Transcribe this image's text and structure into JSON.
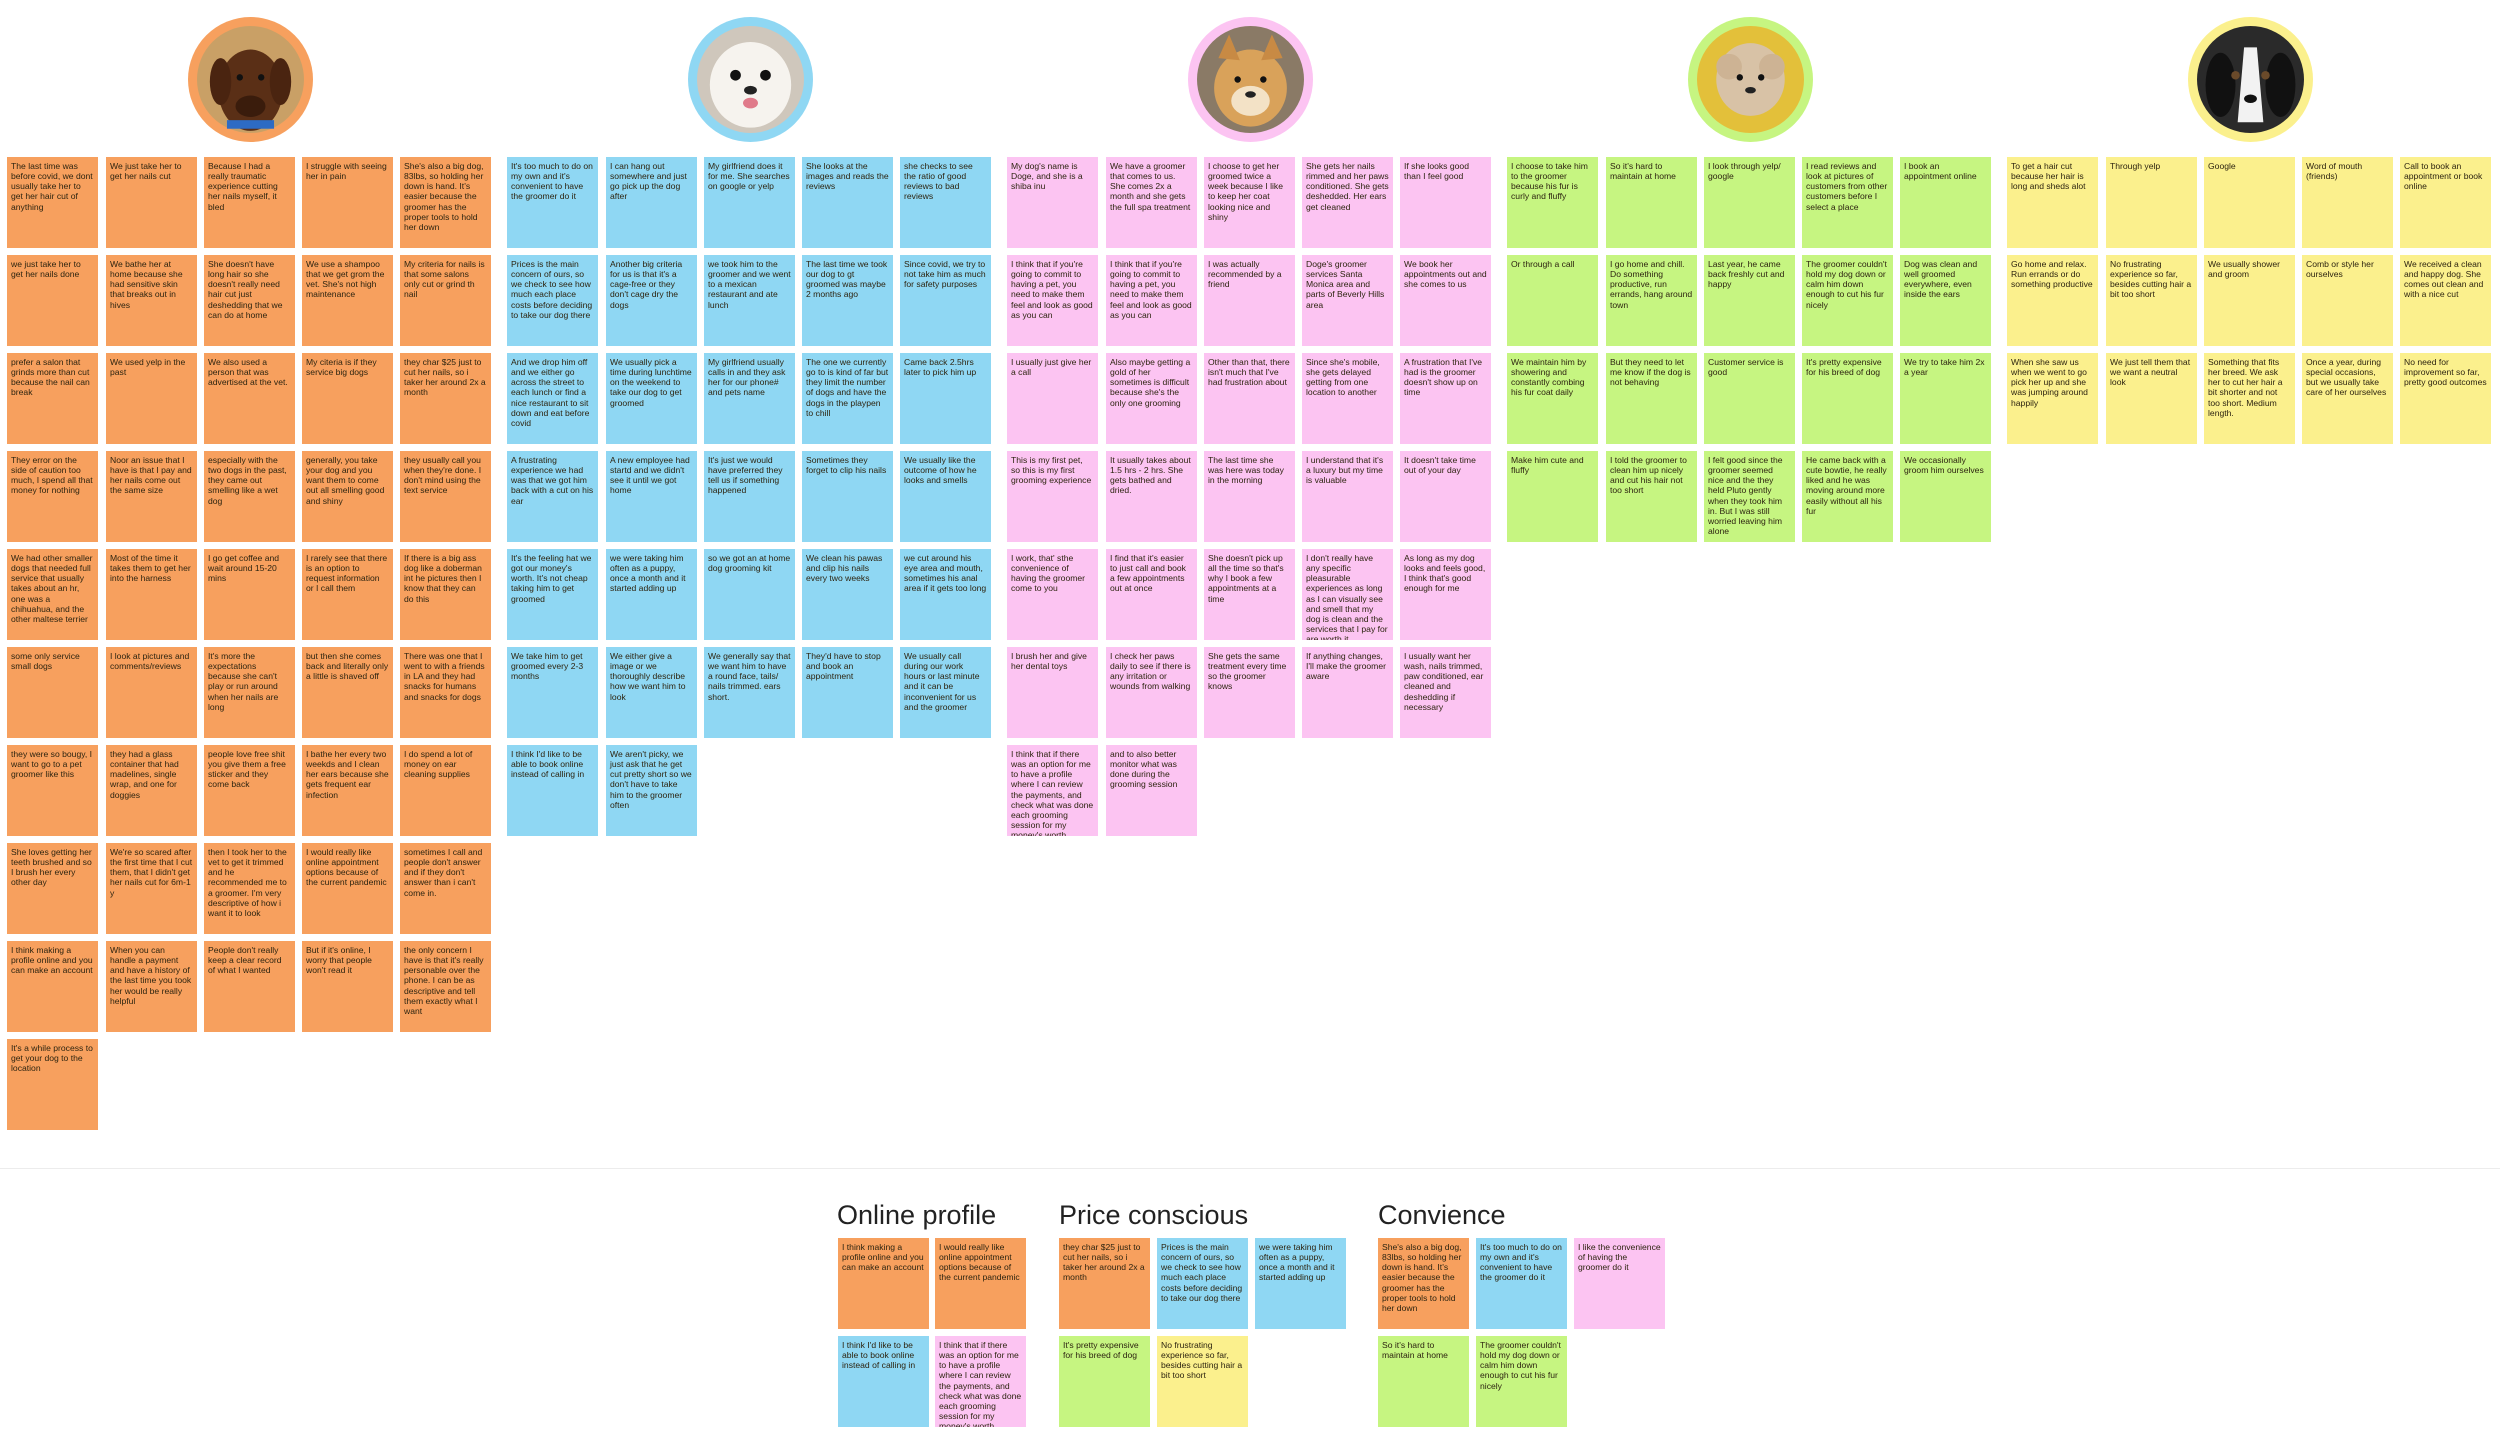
{
  "colors": {
    "orange": "#f7a05e",
    "blue": "#8fd7f3",
    "pink": "#fcc4f2",
    "green": "#c6f581",
    "yellow": "#fbf08d"
  },
  "avatars": [
    {
      "name": "brown-dog-avatar",
      "ring": "#f7a05e"
    },
    {
      "name": "white-dog-avatar",
      "ring": "#8fd7f3"
    },
    {
      "name": "shiba-inu-avatar",
      "ring": "#fcc4f2"
    },
    {
      "name": "fluffy-dog-avatar",
      "ring": "#c6f581"
    },
    {
      "name": "black-white-dog-avatar",
      "ring": "#fbf08d"
    }
  ],
  "orange": [
    [
      "The last time was before covid, we dont usually take her to get her hair cut of anything",
      "we just take her to get her nails done",
      "prefer a salon that grinds more than cut because the nail can break",
      "They error on the side of caution too much, I spend all that money for nothing",
      "We had other smaller dogs that needed full service that usually takes about an hr, one was a chihuahua, and the other maltese terrier",
      "some only service small dogs",
      "they were so bougy, I want to go to a pet groomer like this",
      "She loves getting her teeth brushed and so I brush her every other day",
      "I think making a profile online and you can make an account",
      "It's a while process to get your dog to the location"
    ],
    [
      "We just take her to get her nails cut",
      "We bathe her at home because she had sensitive skin that breaks out in hives",
      "We used yelp in the past",
      "Noor an issue that I have is that I pay and her nails come out the same size",
      "Most of the time it takes them to get her into the harness",
      "I look at pictures and comments/reviews",
      "they had a glass container that had madelines, single wrap, and one for doggies",
      "We're so scared after the first time that I cut them, that I didn't get her nails cut for 6m-1 y",
      "When you can handle a payment and have a history of the last time you took her would be really helpful"
    ],
    [
      "Because I had a really traumatic experience cutting her nails myself, it bled",
      "She doesn't have long hair so she doesn't really need hair cut just deshedding that we can do at home",
      "We also used a person that was advertised at the vet.",
      "especially with the two dogs in the past, they came out smelling like a wet dog",
      "I go get coffee and wait around 15-20 mins",
      "It's more the expectations because she can't play or run around when her nails are long",
      "people love free shit you give them a free sticker and they come back",
      "then I took her to the vet to get it trimmed and he recommended me to a groomer. I'm very descriptive of how i want it to look",
      "People don't really keep a clear record of what I wanted"
    ],
    [
      "I struggle with seeing her in pain",
      "We use a shampoo that we get grom the vet. She's not high maintenance",
      "My citeria is if they service big dogs",
      "generally, you take your dog and you want them to come out all smelling good and shiny",
      "I rarely see that there is an option to request information or I call them",
      "but then she comes back and literally only a little is shaved off",
      "I bathe her every two weekds and I clean her ears because she gets frequent ear infection",
      "I would really like online appointment options because of the current pandemic",
      "But if it's online, I worry that people won't read it"
    ],
    [
      "She's also a big dog, 83lbs, so holding her down is hand. It's easier because the groomer has the proper tools to hold her down",
      "My criteria for nails is that some salons only cut or grind th nail",
      "they char $25 just to cut her nails, so i taker her around 2x a month",
      "they usually call you when they're done. I don't mind using the text service",
      "If there is a big ass dog like a doberman int he pictures then I know that they can do this",
      "There was one that I went to with a friends in LA and they had snacks for humans and snacks for dogs",
      "I do spend a lot of money on ear cleaning supplies",
      "sometimes I call and people don't answer and if they don't answer than i can't come in.",
      "the only concern I have is that it's really personable over the phone. I can be as descriptive and tell them exactly what I want"
    ]
  ],
  "blue": [
    [
      "It's too much to do on my own and it's convenient to have the groomer do it",
      "Prices is the main concern of ours, so we check to see how much each place costs before deciding to take our dog there",
      "And we drop him off and we either go across the street to each lunch or find a nice restaurant to sit down and eat before covid",
      "A frustrating experience we had was that we got him back with a cut on his ear",
      "It's the feeling hat we got our money's worth. It's not cheap taking him to get groomed",
      "We take him to get groomed every 2-3 months",
      "I think I'd like to be able to book online instead of calling in"
    ],
    [
      "I can hang out somewhere and just go pick up the dog after",
      "Another big criteria for us is that it's a cage-free or they don't cage dry the dogs",
      "We usually pick a time during lunchtime on the weekend to take our dog to get groomed",
      "A new employee had startd and we didn't see it until we got home",
      "we were taking him often as a puppy, once a month and it started adding up",
      "We either give a image or we thoroughly describe how we want him to look",
      "We aren't picky, we just ask that he get cut pretty short so we don't have to take him to the groomer often"
    ],
    [
      "My girlfriend does it for me. She searches on google or yelp",
      "we took him to the groomer and we went to a mexican restaurant and ate lunch",
      "My girlfriend usually calls in and they ask her for our phone# and pets name",
      "It's just we would have preferred they tell us if something happened",
      "so we got an at home dog grooming kit",
      "We generally say that we want him to have a round face, tails/ nails trimmed. ears short."
    ],
    [
      "She looks at the images and reads the reviews",
      "The last time we took our dog to gt groomed was maybe 2 months ago",
      "The one we currently go to is kind of far but they limit the number of dogs and have the dogs in the playpen to chill",
      "Sometimes they forget to clip his nails",
      "We clean his pawas and clip his nails every two weeks",
      "They'd have to stop and book an appointment"
    ],
    [
      "she checks to see the ratio of good reviews to bad reviews",
      "Since covid, we try to not take him as much for safety purposes",
      "Came back 2.5hrs later to pick him up",
      "We usually like the outcome of how he looks and smells",
      "we cut around his eye area and mouth, sometimes his anal area if it gets too long",
      "We usually call during our work hours or last minute and it can be inconvenient for us and the groomer"
    ]
  ],
  "pink": [
    [
      "My dog's name is Doge, and she is a shiba inu",
      "I think that if you're going to commit to having a pet, you need to make them feel and look as good as you can",
      "I usually just give her a call",
      "This is my first pet, so this is my first grooming experience",
      "I work, that' sthe convenience of having the groomer come to you",
      "I brush her and give her dental toys",
      "I think that if there was an option for me to have a profile where I can review the payments, and check what was done each grooming session for my money's worth"
    ],
    [
      "We have a groomer that comes to us. She comes 2x a month and she gets the full spa treatment",
      "I think that if you're going to commit to having a pet, you need to make them feel and look as good as you can",
      "Also maybe getting a gold of her sometimes is difficult because she's the only one grooming",
      "It usually takes about 1.5 hrs - 2 hrs. She gets bathed and dried.",
      "I find that it's easier to just call and book a few appointments out at once",
      "I check her paws daily to see if there is any irritation or wounds from walking",
      "and to also better monitor what was done during the grooming session"
    ],
    [
      "I choose to get her groomed twice a week because I like to keep her coat looking nice and shiny",
      "I was actually recommended by a friend",
      "Other than that, there isn't much that I've had frustration about",
      "The last time she was here was today in the morning",
      "She doesn't pick up all the time so that's why I book a few appointments at a time",
      "She gets the same treatment every time so the groomer knows"
    ],
    [
      "She gets her nails rimmed and her paws conditioned. She gets deshedded. Her ears get cleaned",
      "Doge's groomer services Santa Monica area and parts of Beverly Hills area",
      "Since she's mobile, she gets delayed getting from one location to another",
      "I understand that it's a luxury but my time is valuable",
      "I don't really have any specific pleasurable experiences as long as I can visually see and smell that my dog is clean and the services that I pay for are worth it",
      "If anything changes, I'll make the groomer aware"
    ],
    [
      "If she looks good than I feel good",
      "We book her appointments out and she comes to us",
      "A frustration that I've had is the groomer doesn't show up on time",
      "It doesn't take time out of your day",
      "As long as my dog looks and feels good, I think that's good enough for me",
      "I usually want her wash, nails trimmed, paw conditioned, ear cleaned and deshedding if necessary"
    ]
  ],
  "green": [
    [
      "I choose to take him to the groomer because his fur is curly and fluffy",
      "Or through a call",
      "We maintain him by showering and constantly combing his fur coat daily",
      "Make him cute and fluffy"
    ],
    [
      "So it's hard to maintain at home",
      "I go home and chill. Do something productive, run errands, hang around town",
      "But they need to let me know if the dog is not behaving",
      "I told the groomer to clean him up nicely and cut his hair not too short"
    ],
    [
      "I look through yelp/ google",
      "Last year, he came back freshly cut and happy",
      "Customer service is good",
      "I felt good since the groomer seemed nice and the they held Pluto gently when they took him in. But I was still worried leaving him alone"
    ],
    [
      "I read reviews and look at pictures of customers from other customers before I select a place",
      "The groomer couldn't hold my dog down or calm him down enough to cut his fur nicely",
      "It's pretty expensive for his breed of dog",
      "He came back with a cute bowtie, he really liked and he was moving around more easily without all his fur"
    ],
    [
      "I book an appointment online",
      "Dog was clean and well groomed everywhere, even inside the ears",
      "We try to take him 2x a year",
      "We occasionally groom him ourselves"
    ]
  ],
  "yellow": [
    [
      "To get a hair cut because her hair is long and sheds alot",
      "Go home and relax. Run errands or do something productive",
      "When she saw us when we went to go pick her up and she was jumping around happily"
    ],
    [
      "Through yelp",
      "No frustrating experience so far, besides cutting hair a bit too short",
      "We just tell them that we want a neutral look"
    ],
    [
      "Google",
      "We usually shower and groom",
      "Something that fits her breed. We ask her to cut her hair a bit shorter and not too short. Medium length."
    ],
    [
      "Word of mouth (friends)",
      "Comb or style her ourselves",
      "Once a year, during special occasions, but we usually take care of her ourselves"
    ],
    [
      "Call to book an appointment or book online",
      "We received a clean and happy dog. She comes out clean and with a nice cut",
      "No need for improvement so far, pretty good outcomes"
    ]
  ],
  "clusters": {
    "online_profile": {
      "title": "Online profile",
      "notes": [
        "I think making a profile online and you can make an account",
        "I would really like online appointment options because of the current pandemic",
        "I think I'd like to be able to book online instead of calling in",
        "I think that if there was an option for me to have a profile where I can review the payments, and check what was done each grooming session for my money's worth"
      ]
    },
    "price_conscious": {
      "title": "Price conscious",
      "notes": [
        "they char $25 just to cut her nails, so i taker her around 2x a month",
        "Prices is the main concern of ours, so we check to see how much each place costs before deciding to take our dog there",
        "we were taking him often as a puppy, once a month and it started adding up",
        "It's pretty expensive for his breed of dog",
        "No frustrating experience so far, besides cutting hair a bit too short"
      ]
    },
    "convience": {
      "title": "Convience",
      "notes": [
        "She's also a big dog, 83lbs, so holding her down is hand. It's easier because the groomer has the proper tools to hold her down",
        "It's too much to do on my own and it's convenient to have the groomer do it",
        "I like the convenience of having the groomer do it",
        "So it's hard to maintain at home",
        "The groomer couldn't hold my dog down or calm him down enough to cut his fur nicely"
      ]
    }
  }
}
